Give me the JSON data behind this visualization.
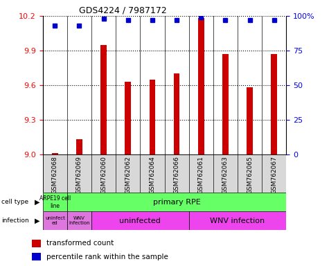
{
  "title": "GDS4224 / 7987172",
  "samples": [
    "GSM762068",
    "GSM762069",
    "GSM762060",
    "GSM762062",
    "GSM762064",
    "GSM762066",
    "GSM762061",
    "GSM762063",
    "GSM762065",
    "GSM762067"
  ],
  "transformed_count": [
    9.01,
    9.13,
    9.95,
    9.63,
    9.65,
    9.7,
    10.18,
    9.87,
    9.58,
    9.87
  ],
  "percentile_rank": [
    93,
    93,
    98,
    97,
    97,
    97,
    99,
    97,
    97,
    97
  ],
  "ylim_left": [
    9.0,
    10.2
  ],
  "ylim_right": [
    0,
    100
  ],
  "yticks_left": [
    9.0,
    9.3,
    9.6,
    9.9,
    10.2
  ],
  "yticks_right": [
    0,
    25,
    50,
    75,
    100
  ],
  "ytick_labels_right": [
    "0",
    "25",
    "50",
    "75",
    "100%"
  ],
  "bar_color": "#cc0000",
  "dot_color": "#0000cc",
  "green": "#66ff66",
  "pink_light": "#ee88ee",
  "pink_dark": "#ee44ee",
  "background_color": "#ffffff",
  "legend_bar_label": "transformed count",
  "legend_dot_label": "percentile rank within the sample",
  "dot_size": 5,
  "cell_type_label": "cell type",
  "infection_label": "infection"
}
